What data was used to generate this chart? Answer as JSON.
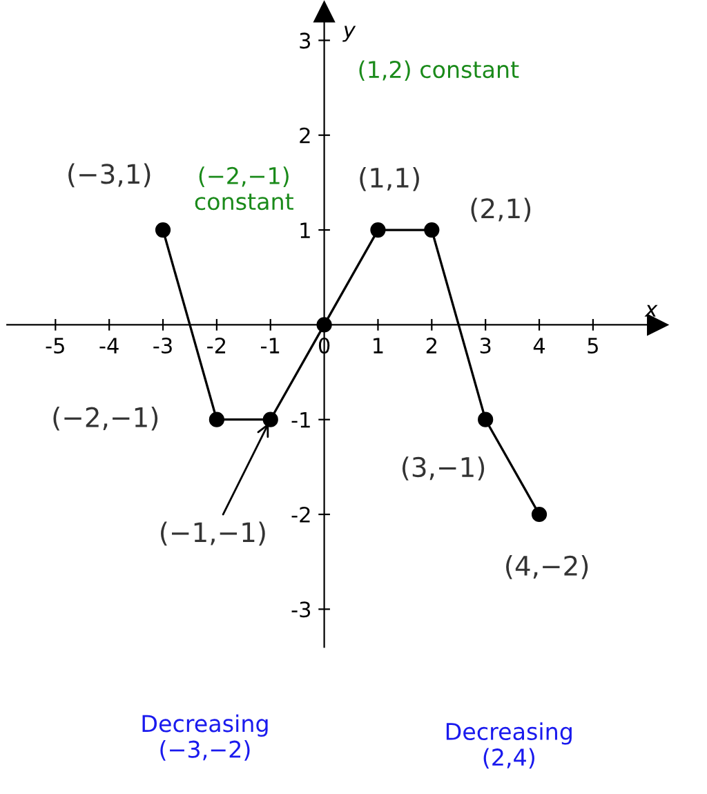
{
  "chart_data": {
    "type": "line",
    "x": [
      -3,
      -2,
      -1,
      0,
      1,
      2,
      3,
      4
    ],
    "series": [
      {
        "color": "#000000",
        "values": [
          1,
          -1,
          -1,
          0,
          1,
          1,
          -1,
          -2
        ]
      }
    ],
    "marker": "circle",
    "line_style": "solid",
    "xlabel": "x",
    "ylabel": "y",
    "xlim": [
      -5.9,
      6.2
    ],
    "ylim": [
      -3.4,
      3.3
    ],
    "xticks": [
      -5,
      -4,
      -3,
      -2,
      -1,
      0,
      1,
      2,
      3,
      4,
      5
    ],
    "yticks": [
      -3,
      -2,
      -1,
      1,
      2,
      3
    ],
    "grid": false,
    "legend": false,
    "annotations": [
      {
        "text": "(−3,1)",
        "x": -3,
        "y": 1
      },
      {
        "text": "(−2,−1)",
        "x": -2,
        "y": -1
      },
      {
        "text": "(−1,−1)",
        "x": -1,
        "y": -1
      },
      {
        "text": "(1,1)",
        "x": 1,
        "y": 1
      },
      {
        "text": "(2,1)",
        "x": 2,
        "y": 1
      },
      {
        "text": "(3,−1)",
        "x": 3,
        "y": -1
      },
      {
        "text": "(4,−2)",
        "x": 4,
        "y": -2
      },
      "(−2,−1)\nconstant",
      "(1,2) constant",
      "Decreasing\n(−3,−2)",
      "Decreasing\n(2,4)"
    ]
  }
}
